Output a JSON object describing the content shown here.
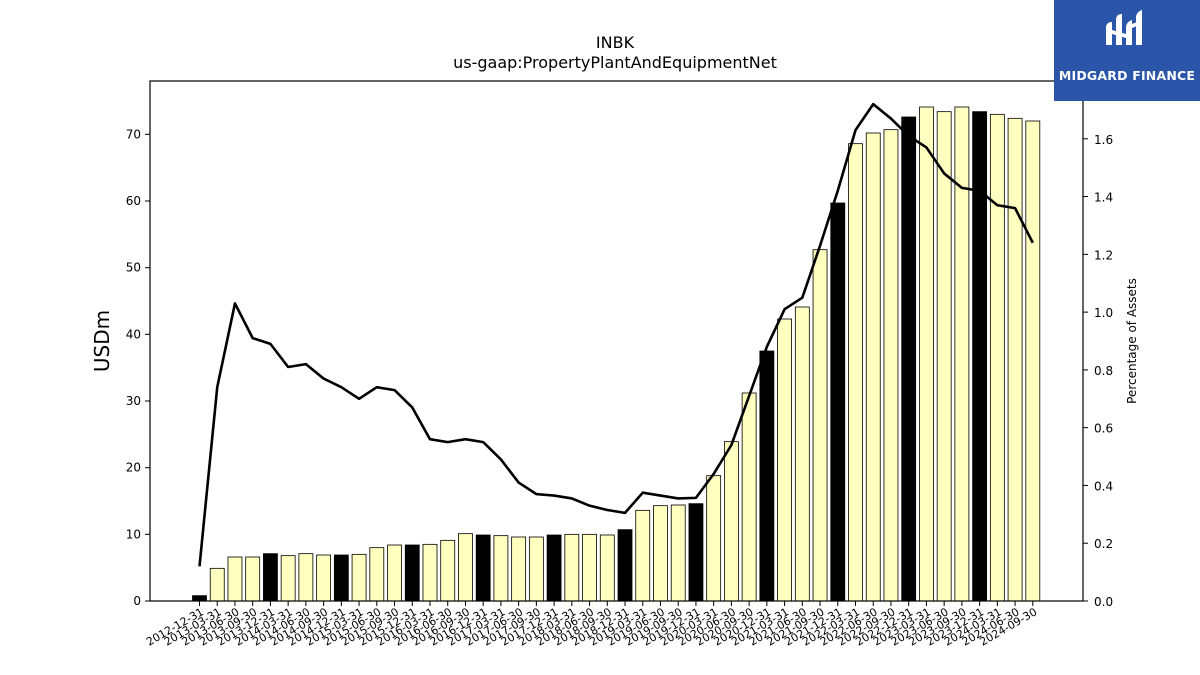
{
  "brand": {
    "name": "MIDGARD FINANCE",
    "bg_color": "#2a55a8"
  },
  "chart_data": {
    "type": "bar",
    "title": "INBK",
    "subtitle": "us-gaap:PropertyPlantAndEquipmentNet",
    "ylabel": "USDm",
    "y2label": "Percentage of Assets",
    "ylim": [
      0,
      78
    ],
    "y2lim": [
      0,
      1.8
    ],
    "yticks": [
      0,
      10,
      20,
      30,
      40,
      50,
      60,
      70
    ],
    "y2ticks": [
      0.0,
      0.2,
      0.4,
      0.6,
      0.8,
      1.0,
      1.2,
      1.4,
      1.6
    ],
    "bar_colors": {
      "annual": "#000000",
      "quarterly": "#ffffc0"
    },
    "line_color": "#000000",
    "categories": [
      "2012-12-31",
      "2013-03-31",
      "2013-06-30",
      "2013-09-30",
      "2013-12-31",
      "2014-03-31",
      "2014-06-30",
      "2014-09-30",
      "2014-12-31",
      "2015-03-31",
      "2015-06-30",
      "2015-09-30",
      "2015-12-31",
      "2016-03-31",
      "2016-06-30",
      "2016-09-30",
      "2016-12-31",
      "2017-03-31",
      "2017-06-30",
      "2017-09-30",
      "2017-12-31",
      "2018-03-31",
      "2018-06-30",
      "2018-09-30",
      "2018-12-31",
      "2019-03-31",
      "2019-06-30",
      "2019-09-30",
      "2019-12-31",
      "2020-03-31",
      "2020-06-30",
      "2020-09-30",
      "2020-12-31",
      "2021-03-31",
      "2021-06-30",
      "2021-09-30",
      "2021-12-31",
      "2022-03-31",
      "2022-06-30",
      "2022-09-30",
      "2022-12-31",
      "2023-03-31",
      "2023-06-30",
      "2023-09-30",
      "2023-12-31",
      "2024-03-31",
      "2024-06-30",
      "2024-09-30"
    ],
    "series": [
      {
        "type": "bar",
        "axis": "left",
        "values": [
          0.8,
          4.9,
          6.6,
          6.6,
          7.1,
          6.8,
          7.1,
          6.9,
          6.9,
          7.0,
          8.0,
          8.4,
          8.4,
          8.5,
          9.1,
          10.1,
          9.9,
          9.8,
          9.6,
          9.6,
          9.9,
          10.0,
          10.0,
          9.9,
          10.7,
          13.6,
          14.3,
          14.4,
          14.6,
          18.8,
          23.9,
          31.2,
          37.5,
          42.3,
          44.1,
          52.7,
          59.7,
          68.6,
          70.2,
          70.7,
          72.6,
          74.1,
          73.4,
          74.1,
          73.4,
          73.0,
          72.4,
          72.0
        ],
        "annual": [
          true,
          false,
          false,
          false,
          true,
          false,
          false,
          false,
          true,
          false,
          false,
          false,
          true,
          false,
          false,
          false,
          true,
          false,
          false,
          false,
          true,
          false,
          false,
          false,
          true,
          false,
          false,
          false,
          true,
          false,
          false,
          false,
          true,
          false,
          false,
          false,
          true,
          false,
          false,
          false,
          true,
          false,
          false,
          false,
          true,
          false,
          false,
          false
        ]
      },
      {
        "type": "line",
        "axis": "right",
        "values": [
          0.12,
          0.74,
          1.03,
          0.91,
          0.89,
          0.81,
          0.82,
          0.77,
          0.74,
          0.7,
          0.74,
          0.73,
          0.67,
          0.56,
          0.55,
          0.56,
          0.55,
          0.49,
          0.41,
          0.37,
          0.365,
          0.355,
          0.33,
          0.315,
          0.305,
          0.375,
          0.365,
          0.355,
          0.357,
          0.44,
          0.54,
          0.71,
          0.88,
          1.01,
          1.05,
          1.23,
          1.42,
          1.63,
          1.72,
          1.67,
          1.61,
          1.57,
          1.48,
          1.43,
          1.42,
          1.37,
          1.36,
          1.24
        ]
      }
    ]
  }
}
